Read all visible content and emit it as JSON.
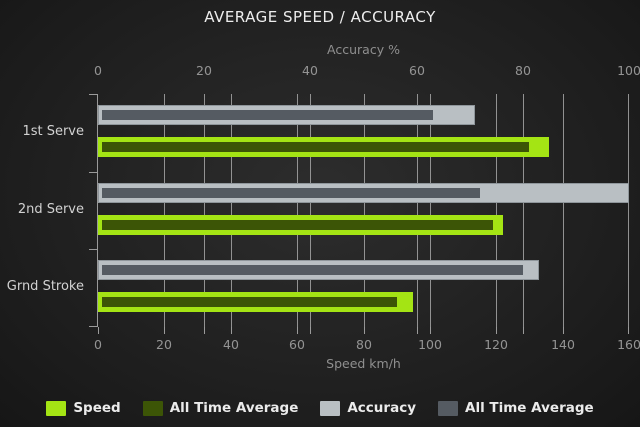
{
  "title": "AVERAGE SPEED / ACCURACY",
  "chart_data": {
    "type": "bar",
    "orientation": "horizontal",
    "title": "AVERAGE SPEED / ACCURACY",
    "categories": [
      "1st Serve",
      "2nd Serve",
      "Grnd Stroke"
    ],
    "series": [
      {
        "name": "Speed",
        "axis": "bottom",
        "color": "#a4e414",
        "values": [
          136,
          122,
          95
        ]
      },
      {
        "name": "All Time Average",
        "axis": "bottom",
        "color": "#3c5506",
        "values": [
          130,
          119,
          90
        ]
      },
      {
        "name": "Accuracy",
        "axis": "top",
        "color": "#b9bfc3",
        "values": [
          71,
          100,
          83
        ]
      },
      {
        "name": "All Time Average",
        "axis": "top",
        "color": "#555b62",
        "values": [
          63,
          72,
          80
        ]
      }
    ],
    "axes": {
      "top": {
        "label": "Accuracy %",
        "min": 0,
        "max": 100,
        "ticks": [
          0,
          20,
          40,
          60,
          80,
          100
        ]
      },
      "bottom": {
        "label": "Speed km/h",
        "min": 0,
        "max": 160,
        "ticks": [
          0,
          20,
          40,
          60,
          80,
          100,
          120,
          140,
          160
        ]
      }
    },
    "grid": true,
    "legend_position": "bottom"
  },
  "legend": [
    {
      "label": "Speed",
      "color": "#a4e414"
    },
    {
      "label": "All Time Average",
      "color": "#3c5506"
    },
    {
      "label": "Accuracy",
      "color": "#b9bfc3"
    },
    {
      "label": "All Time Average",
      "color": "#555b62"
    }
  ],
  "colors": {
    "background": "#232323",
    "title_text": "#ededed",
    "axis_text": "#8f8f8f",
    "tick_text": "#949494",
    "category_text": "#d2d2d2",
    "gridline": "#a6a6a6",
    "speed": "#a4e414",
    "speed_all_time": "#3c5506",
    "accuracy": "#b9bfc3",
    "accuracy_all_time": "#555b62"
  }
}
